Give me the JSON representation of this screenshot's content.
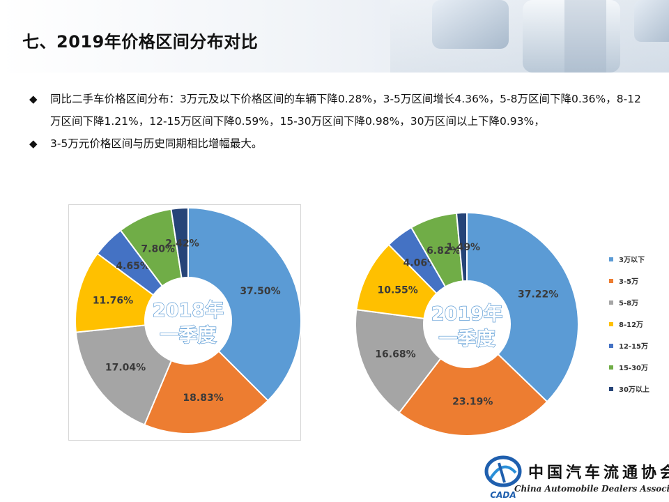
{
  "title": "七、2019年价格区间分布对比",
  "bullets": [
    "同比二手车价格区间分布：3万元及以下价格区间的车辆下降0.28%，3-5万区间增长4.36%，5-8万区间下降0.36%，8-12万区间下降1.21%，12-15万区间下降0.59%，15-30万区间下降0.98%，30万区间以上下降0.93%，",
    "3-5万元价格区间与历史同期相比增幅最大。"
  ],
  "colors": [
    "#5b9bd5",
    "#ed7d31",
    "#a5a5a5",
    "#ffc000",
    "#4472c4",
    "#70ad47",
    "#264478"
  ],
  "legend": [
    "3万以下",
    "3-5万",
    "5-8万",
    "8-12万",
    "12-15万",
    "15-30万",
    "30万以上"
  ],
  "chart_data": [
    {
      "type": "pie",
      "variant": "donut",
      "title": "2018年 一季度",
      "center_label": [
        "2018年",
        "一季度"
      ],
      "categories": [
        "3万以下",
        "3-5万",
        "5-8万",
        "8-12万",
        "12-15万",
        "15-30万",
        "30万以上"
      ],
      "values": [
        37.5,
        18.83,
        17.04,
        11.76,
        4.65,
        7.8,
        2.42
      ],
      "labels": [
        "37.50%",
        "18.83%",
        "17.04%",
        "11.76%",
        "4.65%",
        "7.80%",
        "2.42%"
      ],
      "unit": "%"
    },
    {
      "type": "pie",
      "variant": "donut",
      "title": "2019年 一季度",
      "center_label": [
        "2019年",
        "一季度"
      ],
      "categories": [
        "3万以下",
        "3-5万",
        "5-8万",
        "8-12万",
        "12-15万",
        "15-30万",
        "30万以上"
      ],
      "values": [
        37.22,
        23.19,
        16.68,
        10.55,
        4.06,
        6.82,
        1.49
      ],
      "labels": [
        "37.22%",
        "23.19%",
        "16.68%",
        "10.55%",
        "4.06%",
        "6.82%",
        "1.49%"
      ],
      "unit": "%",
      "legend_position": "right"
    }
  ],
  "logo": {
    "name_cn": "中国汽车流通协会",
    "abbr": "CADA",
    "name_en": "China Automobile Dealers Association"
  }
}
